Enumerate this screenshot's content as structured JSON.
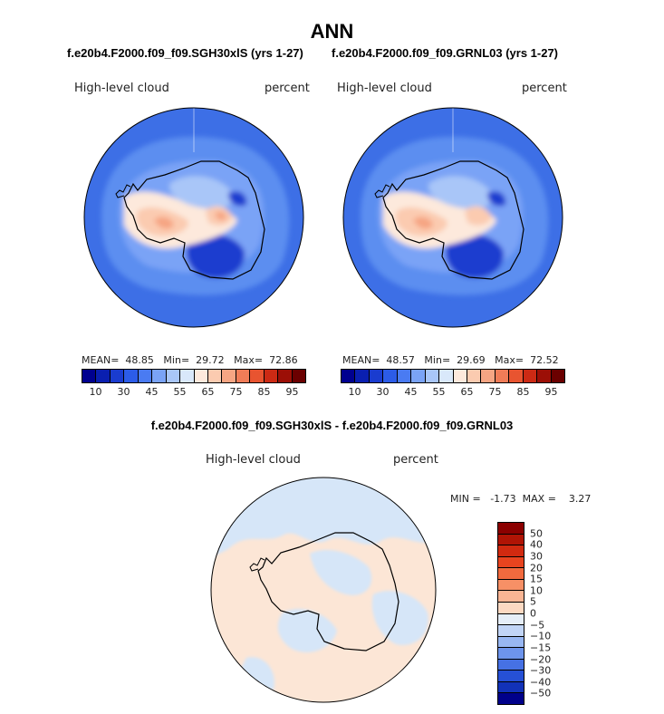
{
  "title": "ANN",
  "panels": [
    {
      "case_title": "f.e20b4.F2000.f09_f09.SGH30xlS (yrs 1-27)",
      "variable": "High-level cloud",
      "units": "percent",
      "mean_label": "MEAN=",
      "mean": "48.85",
      "min_label": "Min=",
      "min": "29.72",
      "max_label": "Max=",
      "max": "72.86"
    },
    {
      "case_title": "f.e20b4.F2000.f09_f09.GRNL03 (yrs 1-27)",
      "variable": "High-level cloud",
      "units": "percent",
      "mean_label": "MEAN=",
      "mean": "48.57",
      "min_label": "Min=",
      "min": "29.69",
      "max_label": "Max=",
      "max": "72.52"
    }
  ],
  "colorbar": {
    "labels": [
      "10",
      "30",
      "45",
      "55",
      "65",
      "75",
      "85",
      "95"
    ],
    "colors": [
      "#00008f",
      "#0a1fb0",
      "#1a3ccf",
      "#2c5ce8",
      "#4a7bf2",
      "#7aa3f6",
      "#a9c6f8",
      "#d9e8fa",
      "#fde9dc",
      "#fbcbb0",
      "#f6a583",
      "#f07c57",
      "#e85430",
      "#cc2a14",
      "#9c0f06",
      "#6b0000"
    ]
  },
  "difference": {
    "title": "f.e20b4.F2000.f09_f09.SGH30xlS - f.e20b4.F2000.f09_f09.GRNL03",
    "variable": "High-level cloud",
    "units": "percent",
    "min_label": "MIN =",
    "min": "-1.73",
    "max_label": "MAX =",
    "max": "3.27",
    "labels": [
      "50",
      "40",
      "30",
      "20",
      "15",
      "10",
      "5",
      "0",
      "−5",
      "−10",
      "−15",
      "−20",
      "−30",
      "−40",
      "−50"
    ],
    "colors": [
      "#8b0000",
      "#b01405",
      "#d12a10",
      "#e8441f",
      "#f26a3e",
      "#f79066",
      "#f9b594",
      "#fcd9c2",
      "#e6eef8",
      "#c2d5f6",
      "#98b7f2",
      "#6d94ec",
      "#4671e4",
      "#2650d6",
      "#1232b8",
      "#00008a"
    ]
  },
  "map_colors": {
    "ocean": "#3d6fe6",
    "ring": "#5b8ef0",
    "light_blue": "#a9c6f8",
    "mid_blue": "#7aa3f6",
    "dark_blue": "#1a3ccf",
    "peach": "#fde9dc",
    "salmon": "#fbcbb0",
    "orange": "#f6a583",
    "diff_peach": "#fce6d6",
    "diff_blue": "#d6e6f8"
  }
}
